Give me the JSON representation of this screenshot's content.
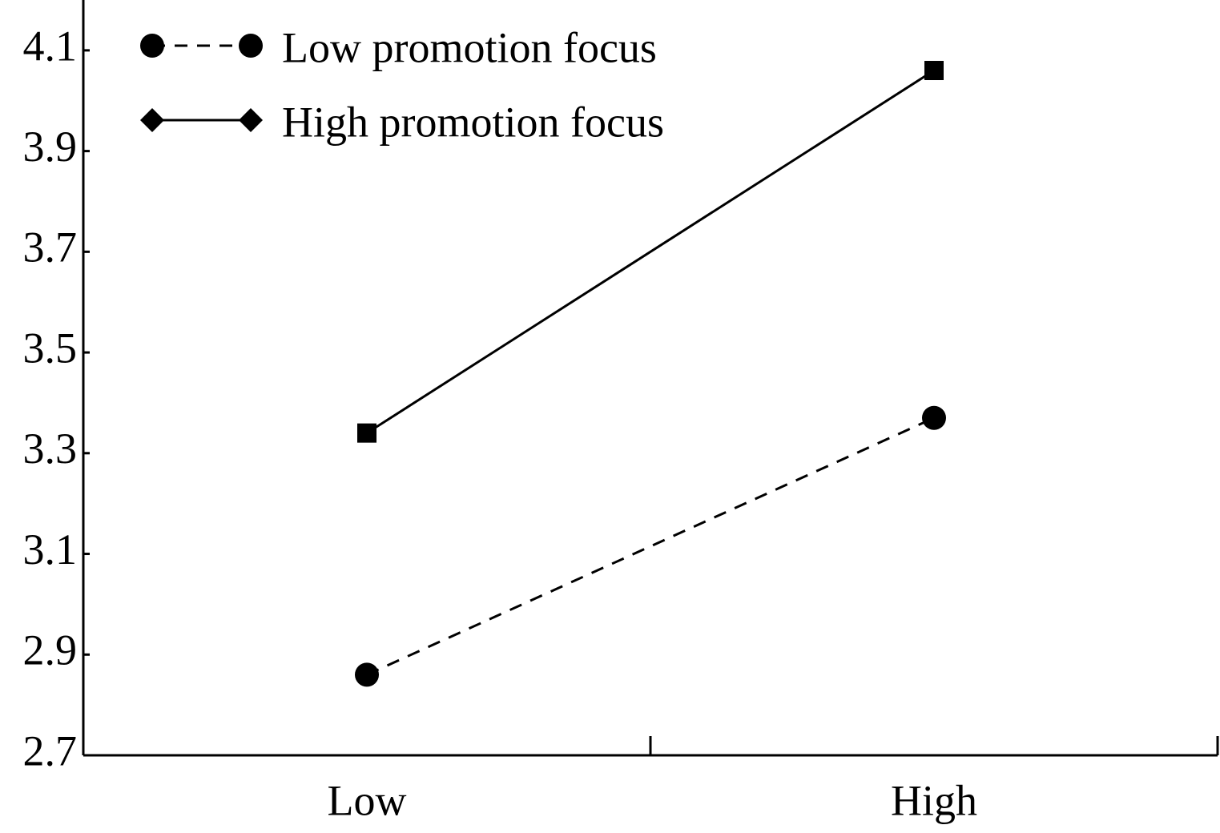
{
  "chart_data": {
    "type": "line",
    "categories": [
      "Low",
      "High"
    ],
    "series": [
      {
        "name": "Low promotion focus",
        "color": "#000000",
        "marker": "circle",
        "dash": true,
        "values": [
          2.86,
          3.37
        ]
      },
      {
        "name": "High promotion focus",
        "color": "#000000",
        "marker": "square",
        "dash": false,
        "values": [
          3.34,
          4.06
        ]
      }
    ],
    "ylim": [
      2.7,
      4.2
    ],
    "yticks": [
      2.7,
      2.9,
      3.1,
      3.3,
      3.5,
      3.7,
      3.9,
      4.1
    ],
    "legend": "upper left"
  }
}
